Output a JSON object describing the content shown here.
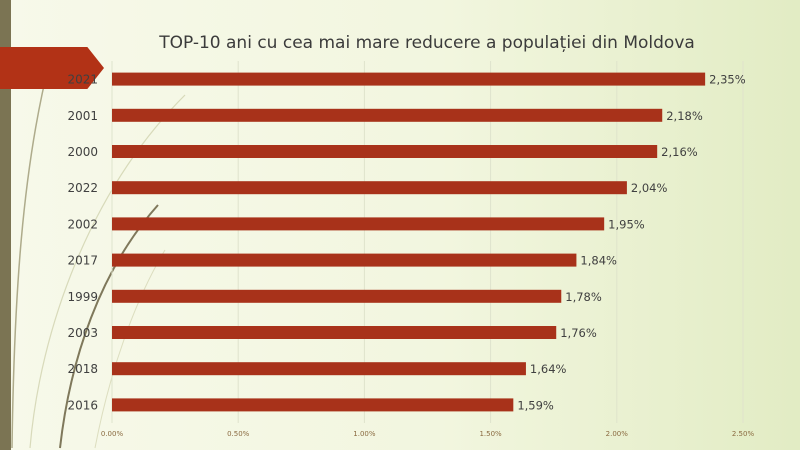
{
  "chart_data": {
    "type": "bar",
    "orientation": "horizontal",
    "title": "TOP-10 ani cu cea mai mare reducere a populației din Moldova",
    "categories": [
      "2021",
      "2001",
      "2000",
      "2022",
      "2002",
      "2017",
      "1999",
      "2003",
      "2018",
      "2016"
    ],
    "values": [
      2.35,
      2.18,
      2.16,
      2.04,
      1.95,
      1.84,
      1.78,
      1.76,
      1.64,
      1.59
    ],
    "value_labels": [
      "2,35%",
      "2,18%",
      "2,16%",
      "2,04%",
      "1,95%",
      "1,84%",
      "1,78%",
      "1,76%",
      "1,64%",
      "1,59%"
    ],
    "x_ticks": [
      0,
      0.5,
      1.0,
      1.5,
      2.0,
      2.5
    ],
    "x_tick_labels": [
      "0.00%",
      "0.50%",
      "1.00%",
      "1.50%",
      "2.00%",
      "2.50%"
    ],
    "xlim": [
      0,
      2.5
    ],
    "xlabel": "",
    "ylabel": "",
    "grid": true,
    "bar_color": "#a8321a",
    "legend": "none"
  },
  "theme": {
    "accent": "#b23216",
    "strip": "#7b7453"
  }
}
